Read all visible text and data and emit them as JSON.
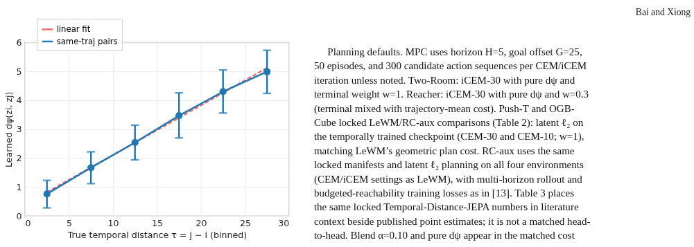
{
  "chart_data": {
    "type": "line",
    "xlabel": "True temporal distance  τ = j − i  (binned)",
    "ylabel": "Learned  dψ(zi, zj)",
    "xlim": [
      0,
      30
    ],
    "xticks": [
      0,
      5,
      10,
      15,
      20,
      25,
      30
    ],
    "ylim": [
      0,
      6
    ],
    "yticks": [
      0,
      1,
      2,
      3,
      4,
      5,
      6
    ],
    "grid": true,
    "legend": "top left",
    "series": [
      {
        "name": "linear fit",
        "color": "#e8686a",
        "line_style": "dashed",
        "marker": "none",
        "x": [
          2.5,
          27.5
        ],
        "values": [
          0.82,
          5.12
        ]
      },
      {
        "name": "same-traj pairs",
        "color": "#1f77b4",
        "line_style": "solid",
        "marker": "circle",
        "x": [
          2.5,
          7.5,
          12.5,
          17.5,
          22.5,
          27.5
        ],
        "values": [
          0.76,
          1.67,
          2.54,
          3.47,
          4.3,
          4.99
        ],
        "errors": [
          [
            0.28,
            1.23
          ],
          [
            1.12,
            2.22
          ],
          [
            1.94,
            3.14
          ],
          [
            2.7,
            4.26
          ],
          [
            3.56,
            5.05
          ],
          [
            4.24,
            5.73
          ]
        ]
      }
    ],
    "annotations": [
      "Bai and Xiong",
      "Planning defaults. MPC uses horizon H=5, goal offset G=25,",
      "50 episodes, and 300 candidate action sequences per CEM/iCEM",
      "iteration unless noted. Two-Room: iCEM-30 with pure dψ and",
      "terminal weight w=1. Reacher: iCEM-30 with pure dψ and w=0.3",
      "(terminal mixed with trajectory-mean cost). Push-T and OGB-",
      "Cube locked LeWM/RC-aux comparisons (Table 2): latent ℓ₂ on",
      "the temporally trained checkpoint (CEM-30 and CEM-10; w=1),",
      "matching LeWM’s geometric plan cost. RC-aux uses the same",
      "locked manifests and latent ℓ₂ planning on all four environments",
      "(CEM/iCEM settings as LeWM), with multi-horizon rollout and",
      "budgeted-reachability training losses as in [13]. Table 3 places",
      "the same locked Temporal-Distance-JEPA numbers in literature",
      "context beside published point estimates; it is not a matched head-",
      "to-head. Blend α=0.10 and pure dψ appear in the matched cost"
    ]
  }
}
